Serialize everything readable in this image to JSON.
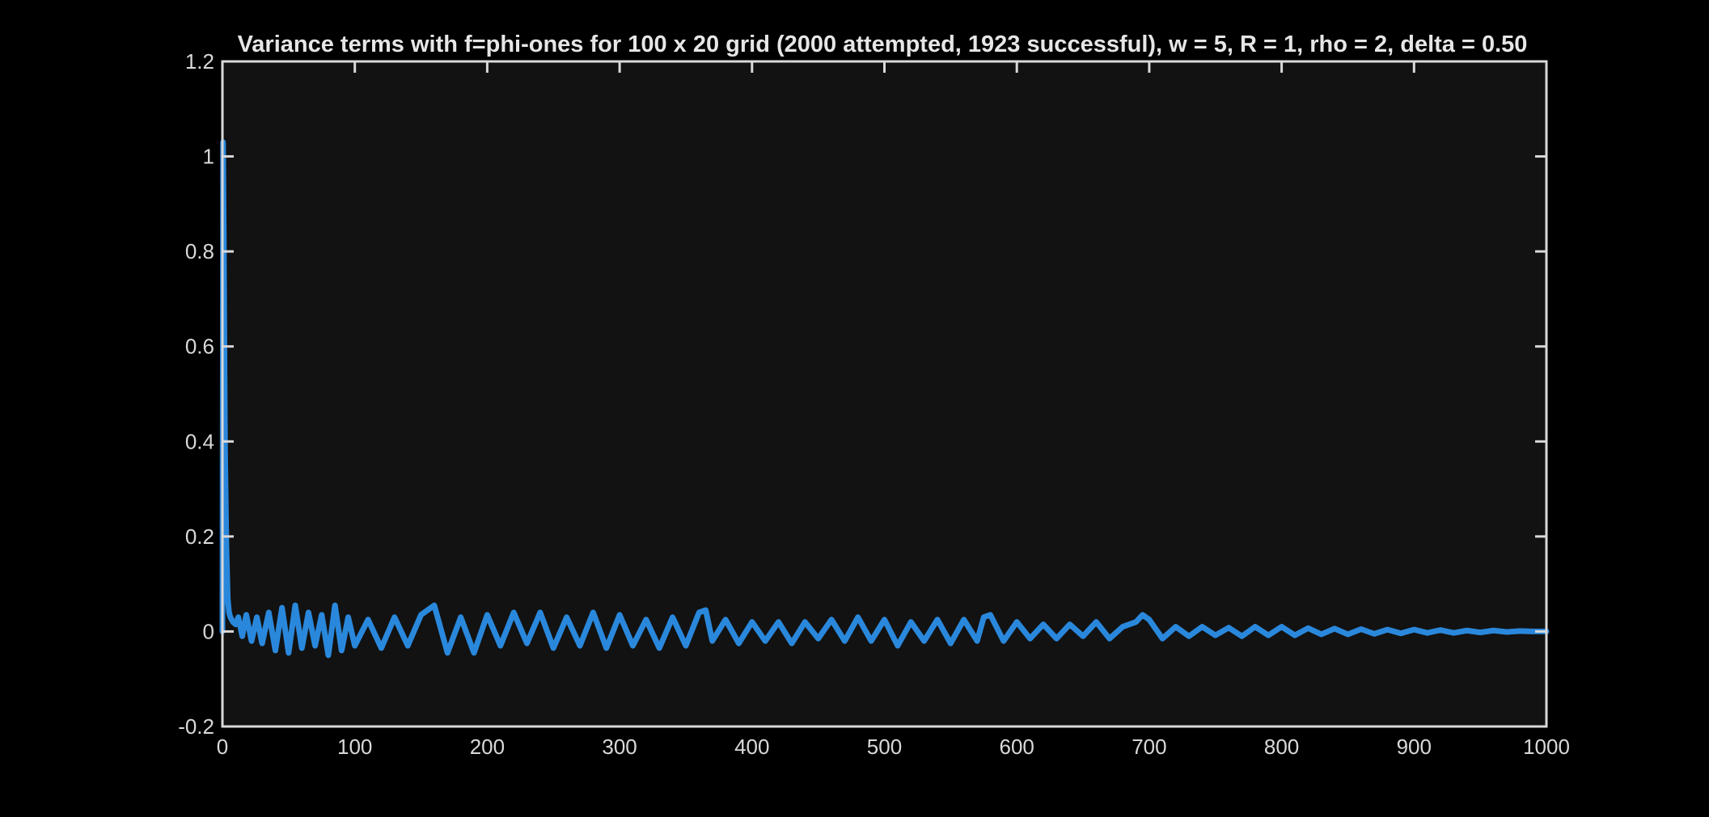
{
  "chart_data": {
    "type": "line",
    "title": "Variance terms with f=phi-ones for 100 x 20 grid (2000 attempted, 1923 successful), w = 5, R = 1, rho = 2, delta = 0.50",
    "xlabel": "",
    "ylabel": "",
    "xlim": [
      0,
      1000
    ],
    "ylim": [
      -0.2,
      1.2
    ],
    "xticks": [
      "0",
      "100",
      "200",
      "300",
      "400",
      "500",
      "600",
      "700",
      "800",
      "900",
      "1000"
    ],
    "yticks": [
      "-0.2",
      "0",
      "0.2",
      "0.4",
      "0.6",
      "0.8",
      "1",
      "1.2"
    ],
    "grid": false,
    "legend": "none",
    "colors": {
      "figure_background": "#000000",
      "axes_background": "#121212",
      "axes_edge": "#d9d9d9",
      "line": "#2a88dc"
    },
    "series": [
      {
        "x": [
          0,
          0.5,
          1,
          1.5,
          2,
          3,
          4,
          5,
          6,
          8,
          10,
          12,
          15,
          18,
          22,
          26,
          30,
          35,
          40,
          45,
          50,
          55,
          60,
          65,
          70,
          75,
          80,
          85,
          90,
          95,
          100,
          110,
          120,
          130,
          140,
          150,
          160,
          170,
          180,
          190,
          200,
          210,
          220,
          230,
          240,
          250,
          260,
          270,
          280,
          290,
          300,
          310,
          320,
          330,
          340,
          350,
          360,
          365,
          370,
          380,
          390,
          400,
          410,
          420,
          430,
          440,
          450,
          460,
          470,
          480,
          490,
          500,
          510,
          520,
          530,
          540,
          550,
          560,
          570,
          575,
          580,
          590,
          600,
          610,
          620,
          630,
          640,
          650,
          660,
          670,
          680,
          690,
          695,
          700,
          710,
          720,
          730,
          740,
          750,
          760,
          770,
          780,
          790,
          800,
          810,
          820,
          830,
          840,
          850,
          860,
          870,
          880,
          890,
          900,
          910,
          920,
          930,
          940,
          950,
          960,
          970,
          980,
          990,
          1000
        ],
        "values": [
          0.0,
          1.03,
          0.85,
          0.6,
          0.38,
          0.18,
          0.07,
          0.04,
          0.03,
          0.02,
          0.015,
          0.03,
          -0.01,
          0.035,
          -0.02,
          0.03,
          -0.025,
          0.04,
          -0.04,
          0.05,
          -0.045,
          0.055,
          -0.035,
          0.04,
          -0.03,
          0.035,
          -0.05,
          0.055,
          -0.04,
          0.03,
          -0.03,
          0.025,
          -0.035,
          0.03,
          -0.03,
          0.035,
          0.055,
          -0.045,
          0.03,
          -0.045,
          0.035,
          -0.03,
          0.04,
          -0.025,
          0.04,
          -0.035,
          0.03,
          -0.03,
          0.04,
          -0.035,
          0.035,
          -0.03,
          0.025,
          -0.035,
          0.03,
          -0.03,
          0.04,
          0.045,
          -0.02,
          0.025,
          -0.025,
          0.02,
          -0.02,
          0.02,
          -0.025,
          0.02,
          -0.015,
          0.025,
          -0.02,
          0.03,
          -0.02,
          0.025,
          -0.03,
          0.02,
          -0.02,
          0.025,
          -0.025,
          0.025,
          -0.02,
          0.03,
          0.035,
          -0.02,
          0.02,
          -0.015,
          0.015,
          -0.015,
          0.015,
          -0.01,
          0.02,
          -0.015,
          0.01,
          0.02,
          0.035,
          0.025,
          -0.015,
          0.01,
          -0.01,
          0.01,
          -0.008,
          0.008,
          -0.01,
          0.01,
          -0.008,
          0.01,
          -0.008,
          0.007,
          -0.006,
          0.006,
          -0.006,
          0.005,
          -0.005,
          0.004,
          -0.004,
          0.004,
          -0.003,
          0.003,
          -0.003,
          0.002,
          -0.002,
          0.002,
          -0.001,
          0.001,
          0.0,
          0.0
        ]
      }
    ]
  }
}
